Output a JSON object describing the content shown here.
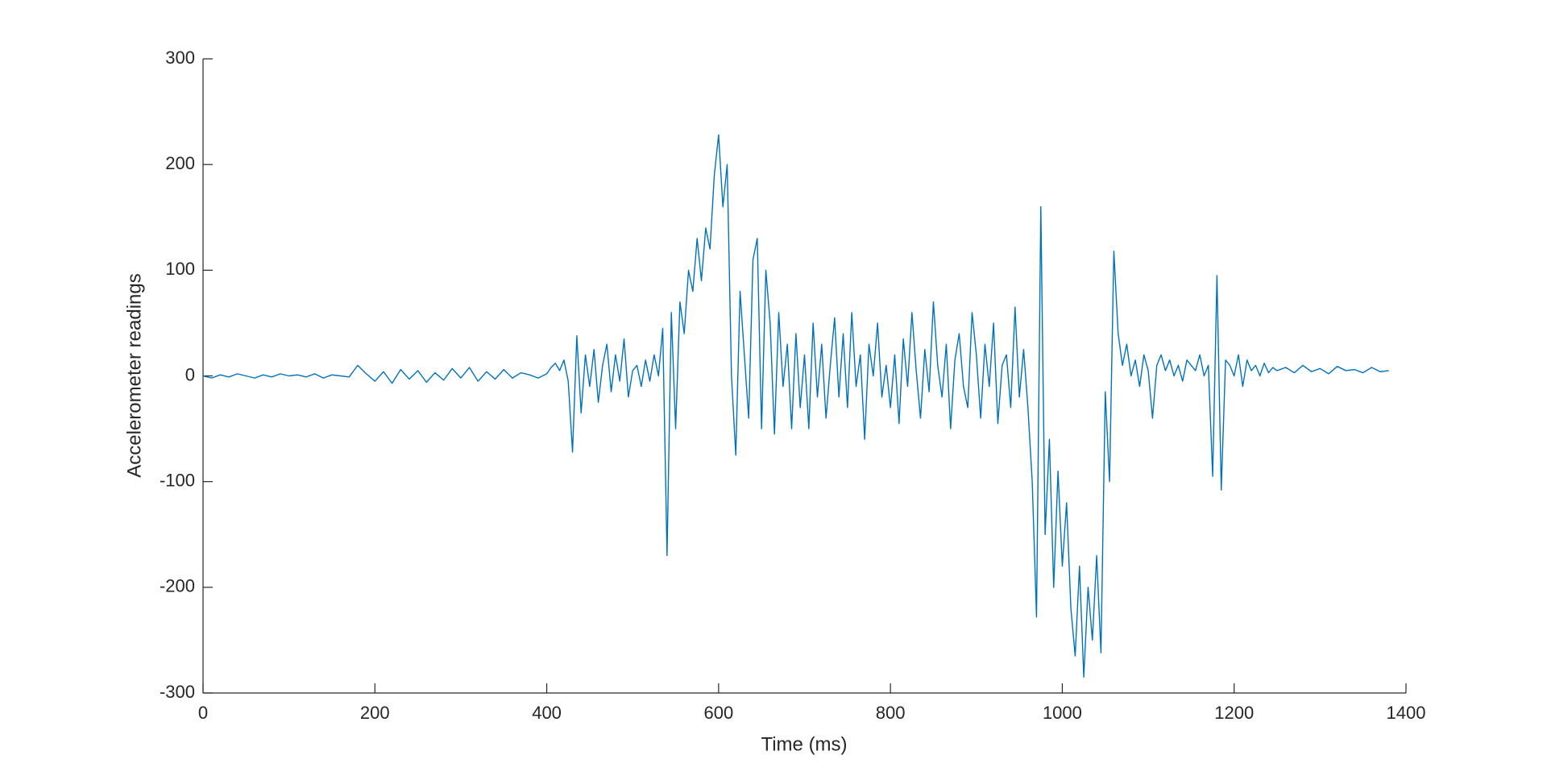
{
  "chart_data": {
    "type": "line",
    "xlabel": "Time (ms)",
    "ylabel": "Accelerometer readings",
    "x": [
      0,
      10,
      20,
      30,
      40,
      50,
      60,
      70,
      80,
      90,
      100,
      110,
      120,
      130,
      140,
      150,
      160,
      170,
      180,
      190,
      200,
      210,
      220,
      230,
      240,
      250,
      260,
      270,
      280,
      290,
      300,
      310,
      320,
      330,
      340,
      350,
      360,
      370,
      380,
      390,
      400,
      405,
      410,
      415,
      420,
      425,
      430,
      435,
      440,
      445,
      450,
      455,
      460,
      465,
      470,
      475,
      480,
      485,
      490,
      495,
      500,
      505,
      510,
      515,
      520,
      525,
      530,
      535,
      540,
      545,
      550,
      555,
      560,
      565,
      570,
      575,
      580,
      585,
      590,
      595,
      600,
      605,
      610,
      615,
      620,
      625,
      630,
      635,
      640,
      645,
      650,
      655,
      660,
      665,
      670,
      675,
      680,
      685,
      690,
      695,
      700,
      705,
      710,
      715,
      720,
      725,
      730,
      735,
      740,
      745,
      750,
      755,
      760,
      765,
      770,
      775,
      780,
      785,
      790,
      795,
      800,
      805,
      810,
      815,
      820,
      825,
      830,
      835,
      840,
      845,
      850,
      855,
      860,
      865,
      870,
      875,
      880,
      885,
      890,
      895,
      900,
      905,
      910,
      915,
      920,
      925,
      930,
      935,
      940,
      945,
      950,
      955,
      960,
      965,
      970,
      975,
      980,
      985,
      990,
      995,
      1000,
      1005,
      1010,
      1015,
      1020,
      1025,
      1030,
      1035,
      1040,
      1045,
      1050,
      1055,
      1060,
      1065,
      1070,
      1075,
      1080,
      1085,
      1090,
      1095,
      1100,
      1105,
      1110,
      1115,
      1120,
      1125,
      1130,
      1135,
      1140,
      1145,
      1150,
      1155,
      1160,
      1165,
      1170,
      1175,
      1180,
      1185,
      1190,
      1195,
      1200,
      1205,
      1210,
      1215,
      1220,
      1225,
      1230,
      1235,
      1240,
      1245,
      1250,
      1260,
      1270,
      1280,
      1290,
      1300,
      1310,
      1320,
      1330,
      1340,
      1350,
      1360,
      1370,
      1380
    ],
    "values": [
      0,
      -2,
      1,
      -1,
      2,
      0,
      -2,
      1,
      -1,
      2,
      0,
      1,
      -1,
      2,
      -2,
      1,
      0,
      -1,
      10,
      2,
      -5,
      4,
      -7,
      6,
      -3,
      5,
      -6,
      3,
      -4,
      7,
      -2,
      8,
      -5,
      4,
      -3,
      6,
      -2,
      3,
      1,
      -2,
      2,
      8,
      12,
      5,
      15,
      -5,
      -72,
      38,
      -35,
      20,
      -10,
      25,
      -25,
      10,
      30,
      -15,
      20,
      -5,
      35,
      -20,
      5,
      10,
      -10,
      15,
      -5,
      20,
      0,
      45,
      -170,
      60,
      -50,
      70,
      40,
      100,
      80,
      130,
      90,
      140,
      120,
      190,
      228,
      160,
      200,
      0,
      -75,
      80,
      20,
      -40,
      110,
      130,
      -50,
      100,
      50,
      -55,
      60,
      -10,
      30,
      -50,
      40,
      -30,
      20,
      -50,
      50,
      -20,
      30,
      -40,
      10,
      55,
      -20,
      40,
      -30,
      60,
      -10,
      20,
      -60,
      30,
      0,
      50,
      -20,
      10,
      -30,
      20,
      -45,
      35,
      -10,
      60,
      5,
      -40,
      25,
      -15,
      70,
      10,
      -20,
      30,
      -50,
      15,
      40,
      -10,
      -30,
      60,
      20,
      -40,
      30,
      -10,
      50,
      -45,
      10,
      20,
      -30,
      65,
      -20,
      25,
      -30,
      -100,
      -228,
      160,
      -150,
      -60,
      -200,
      -90,
      -180,
      -120,
      -220,
      -265,
      -180,
      -285,
      -200,
      -250,
      -170,
      -262,
      -15,
      -100,
      118,
      40,
      10,
      30,
      0,
      15,
      -10,
      20,
      5,
      -40,
      10,
      20,
      5,
      15,
      0,
      10,
      -5,
      15,
      10,
      5,
      20,
      0,
      10,
      -95,
      95,
      -108,
      15,
      10,
      0,
      20,
      -10,
      15,
      5,
      10,
      0,
      12,
      3,
      8,
      5,
      8,
      3,
      10,
      4,
      7,
      2,
      9,
      5,
      6,
      3,
      8,
      4,
      5
    ],
    "color": "#0072bd",
    "xlim": [
      0,
      1400
    ],
    "xticks": [
      0,
      200,
      400,
      600,
      800,
      1000,
      1200,
      1400
    ],
    "ylim": [
      -300,
      300
    ],
    "yticks": [
      -300,
      -200,
      -100,
      0,
      100,
      200,
      300
    ],
    "grid": false
  }
}
